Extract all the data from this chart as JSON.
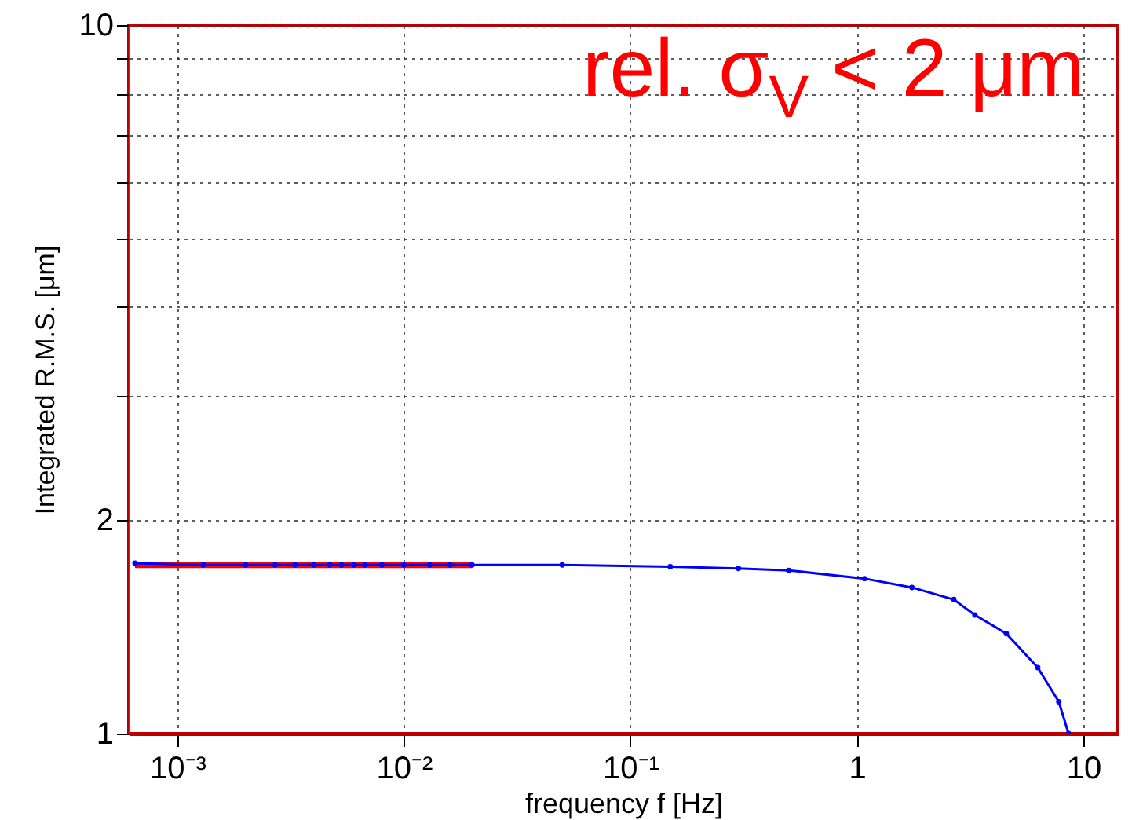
{
  "chart_data": {
    "type": "line",
    "xlabel": "frequency f [Hz]",
    "ylabel": "Integrated R.M.S. [μm]",
    "log": "xy",
    "grid": true,
    "marker": "circle",
    "xlim": [
      0.00061,
      14.2
    ],
    "ylim": [
      1,
      10
    ],
    "xticks": [
      {
        "value": 0.001,
        "label": "10⁻³"
      },
      {
        "value": 0.01,
        "label": "10⁻²"
      },
      {
        "value": 0.1,
        "label": "10⁻¹"
      },
      1,
      10
    ],
    "yticks": [
      1,
      2,
      {
        "value": 3,
        "label": null
      },
      {
        "value": 4,
        "label": null
      },
      {
        "value": 5,
        "label": null
      },
      {
        "value": 6,
        "label": null
      },
      {
        "value": 7,
        "label": null
      },
      {
        "value": 8,
        "label": null
      },
      {
        "value": 9,
        "label": null
      },
      10
    ],
    "series": [
      {
        "color": "#ff0000",
        "marker": "none",
        "x": [
          0.00065,
          0.02
        ],
        "values": [
          1.73,
          1.73
        ]
      },
      {
        "color": "#0000ff",
        "x": [
          0.00065,
          0.0013,
          0.002,
          0.0027,
          0.0033,
          0.004,
          0.0047,
          0.0053,
          0.006,
          0.0067,
          0.008,
          0.01,
          0.013,
          0.016,
          0.02,
          0.05,
          0.15,
          0.3,
          0.5,
          1.08,
          1.75,
          2.68,
          3.32,
          4.57,
          6.29,
          7.79,
          8.6
        ],
        "values": [
          1.74,
          1.73,
          1.73,
          1.73,
          1.73,
          1.73,
          1.73,
          1.73,
          1.73,
          1.73,
          1.73,
          1.73,
          1.73,
          1.73,
          1.73,
          1.73,
          1.72,
          1.71,
          1.7,
          1.655,
          1.608,
          1.546,
          1.47,
          1.384,
          1.239,
          1.109,
          1.0
        ]
      }
    ],
    "annotations": [
      "rel. σ$_{V}$ < 2 μm"
    ]
  }
}
